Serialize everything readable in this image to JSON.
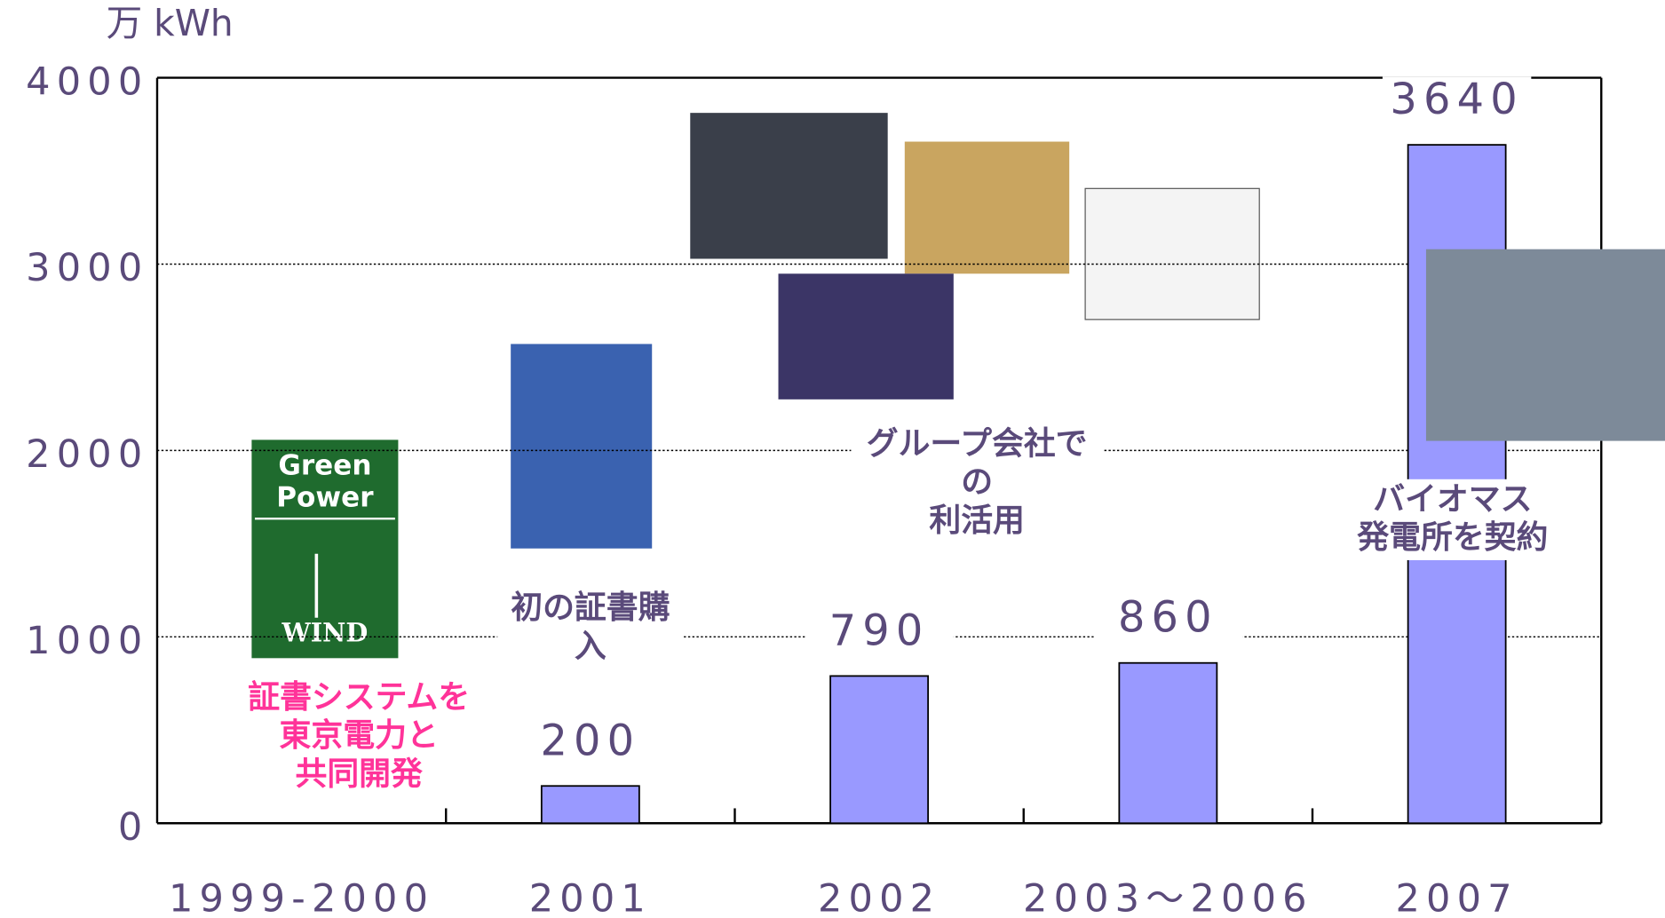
{
  "chart_data": {
    "type": "bar",
    "y_axis_label": "万 kWh",
    "categories": [
      "1999-2000",
      "2001",
      "2002",
      "2003～2006",
      "2007"
    ],
    "values": [
      null,
      200,
      790,
      860,
      3640
    ],
    "color": "#9999ff",
    "ylim": [
      0,
      4000
    ],
    "yticks": [
      0,
      1000,
      2000,
      3000,
      4000
    ],
    "grid": true,
    "annotations": [
      {
        "lines": [
          "証書システムを",
          "東京電力と",
          "共同開発"
        ],
        "color": "#ff3399"
      },
      {
        "lines": [
          "初の証書購",
          "入"
        ],
        "color": "#5a4a7a"
      },
      {
        "lines": [
          "グループ会社で",
          "の",
          "利活用"
        ],
        "color": "#5a4a7a"
      },
      {
        "lines": [
          "バイオマス",
          "発電所を契約"
        ],
        "color": "#5a4a7a"
      }
    ],
    "logo": {
      "top": [
        "Green",
        "Power"
      ],
      "bottom": "WIND"
    }
  }
}
